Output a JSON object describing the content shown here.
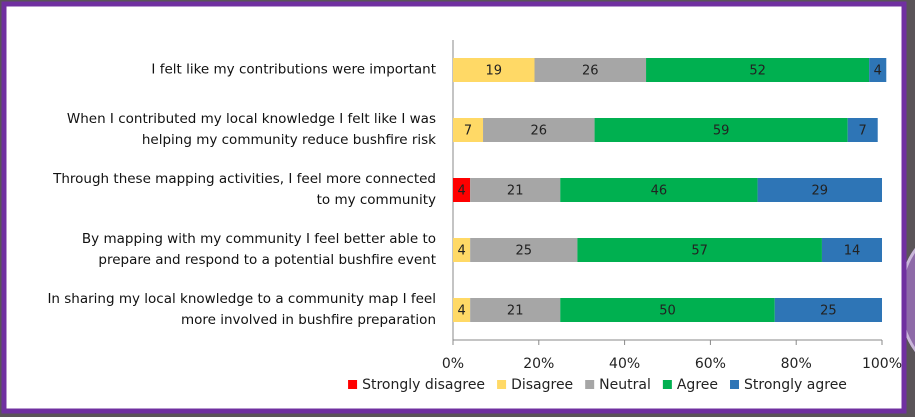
{
  "chart_data": {
    "type": "stacked_barh",
    "categories": [
      "I felt like my contributions were important",
      "When I contributed my local knowledge I felt like I was helping my community reduce bushfire risk",
      "Through these mapping activities, I feel more connected to my community",
      "By mapping with my community I feel better able to prepare and respond to a potential bushfire event",
      "In sharing my local knowledge to a community map I feel more involved in bushfire preparation"
    ],
    "series": [
      {
        "name": "Strongly disagree",
        "color": "#ff0000",
        "values": [
          null,
          null,
          4,
          null,
          null
        ]
      },
      {
        "name": "Disagree",
        "color": "#ffd966",
        "values": [
          19,
          7,
          null,
          4,
          4
        ]
      },
      {
        "name": "Neutral",
        "color": "#a6a6a6",
        "values": [
          26,
          26,
          21,
          25,
          21
        ]
      },
      {
        "name": "Agree",
        "color": "#00b050",
        "values": [
          52,
          59,
          46,
          57,
          50
        ]
      },
      {
        "name": "Strongly agree",
        "color": "#2e75b6",
        "values": [
          4,
          7,
          29,
          14,
          25
        ]
      }
    ],
    "xlim": [
      0,
      100
    ],
    "xticks": [
      {
        "value": 0,
        "label": "0%"
      },
      {
        "value": 20,
        "label": "20%"
      },
      {
        "value": 40,
        "label": "40%"
      },
      {
        "value": 60,
        "label": "60%"
      },
      {
        "value": 80,
        "label": "80%"
      },
      {
        "value": 100,
        "label": "100%"
      }
    ],
    "legend": "bottom"
  }
}
